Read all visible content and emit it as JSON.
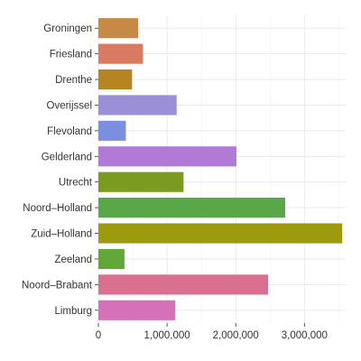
{
  "chart_data": {
    "type": "bar",
    "orientation": "horizontal",
    "title": "",
    "xlabel": "",
    "ylabel": "",
    "grid": true,
    "legend": "none",
    "xlim": [
      0,
      3600000
    ],
    "x_ticks": [
      0,
      1000000,
      2000000,
      3000000
    ],
    "x_tick_labels": [
      "0",
      "1,000,000",
      "2,000,000",
      "3,000,000"
    ],
    "categories": [
      "Groningen",
      "Friesland",
      "Drenthe",
      "Overijssel",
      "Flevoland",
      "Gelderland",
      "Utrecht",
      "Noord–Holland",
      "Zuid–Holland",
      "Zeeland",
      "Noord–Brabant",
      "Limburg"
    ],
    "values": [
      580000,
      650000,
      490000,
      1140000,
      400000,
      2010000,
      1240000,
      2720000,
      3550000,
      380000,
      2470000,
      1120000
    ],
    "colors": [
      "#c68a46",
      "#d97b63",
      "#b5861f",
      "#9b8fd8",
      "#7b8ee0",
      "#b07ad6",
      "#7a9a20",
      "#58a84a",
      "#9e9a0e",
      "#61a838",
      "#d9708f",
      "#d670b9"
    ]
  }
}
